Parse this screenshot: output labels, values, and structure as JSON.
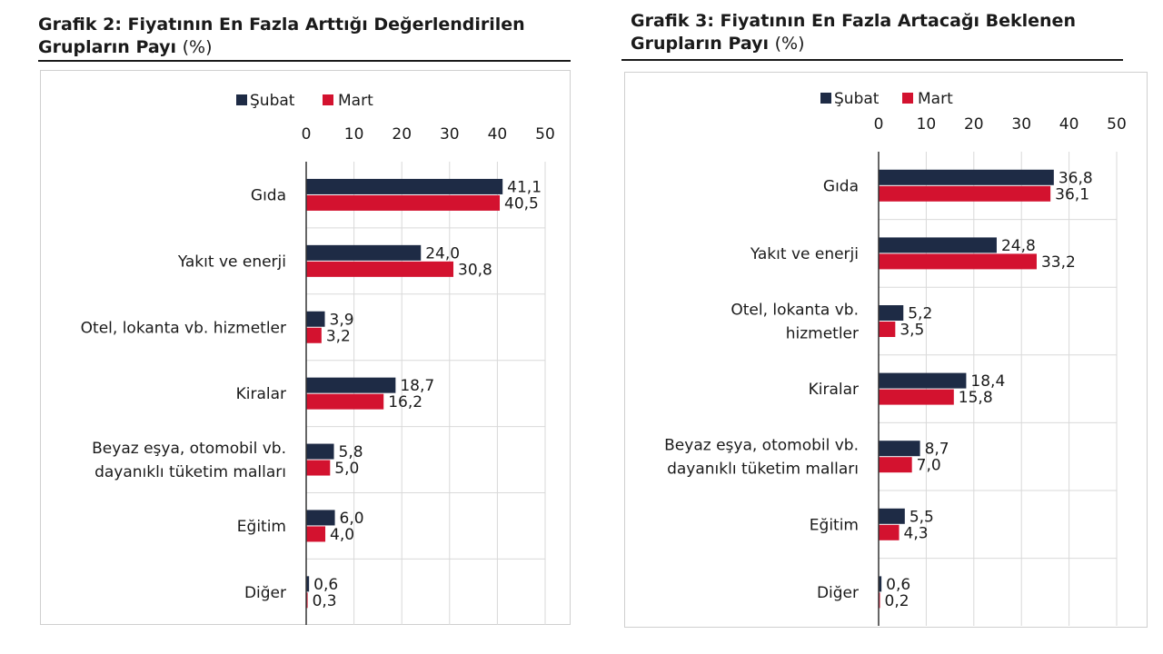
{
  "charts": [
    {
      "title_main": "Grafik 2: Fiyatının En Fazla Arttığı Değerlendirilen",
      "title_line2": "Grupların Payı",
      "title_unit": "(%)"
    },
    {
      "title_main": "Grafik 3: Fiyatının En Fazla Artacağı Beklenen",
      "title_line2": "Grupların Payı",
      "title_unit": "(%)"
    }
  ],
  "colors": {
    "subat": "#1e2b45",
    "mart": "#d3122f",
    "grid": "#d9d9d9",
    "axis": "#333333"
  },
  "chart_data": [
    {
      "type": "bar",
      "orientation": "horizontal",
      "title": "Grafik 2: Fiyatının En Fazla Arttığı Değerlendirilen Grupların Payı (%)",
      "categories": [
        [
          "Gıda"
        ],
        [
          "Yakıt ve enerji"
        ],
        [
          "Otel, lokanta vb. hizmetler"
        ],
        [
          "Kiralar"
        ],
        [
          "Beyaz eşya, otomobil vb.",
          "dayanıklı tüketim malları"
        ],
        [
          "Eğitim"
        ],
        [
          "Diğer"
        ]
      ],
      "series": [
        {
          "name": "Şubat",
          "values": [
            41.1,
            24.0,
            3.9,
            18.7,
            5.8,
            6.0,
            0.6
          ],
          "labels": [
            "41,1",
            "24,0",
            "3,9",
            "18,7",
            "5,8",
            "6,0",
            "0,6"
          ]
        },
        {
          "name": "Mart",
          "values": [
            40.5,
            30.8,
            3.2,
            16.2,
            5.0,
            4.0,
            0.3
          ],
          "labels": [
            "40,5",
            "30,8",
            "3,2",
            "16,2",
            "5,0",
            "4,0",
            "0,3"
          ]
        }
      ],
      "xlim": [
        0,
        50
      ],
      "xticks": [
        "0",
        "10",
        "20",
        "30",
        "40",
        "50"
      ],
      "legend_position": "top",
      "grid": true
    },
    {
      "type": "bar",
      "orientation": "horizontal",
      "title": "Grafik 3: Fiyatının En Fazla Artacağı Beklenen Grupların Payı (%)",
      "categories": [
        [
          "Gıda"
        ],
        [
          "Yakıt ve enerji"
        ],
        [
          "Otel, lokanta vb.",
          "hizmetler"
        ],
        [
          "Kiralar"
        ],
        [
          "Beyaz eşya, otomobil vb.",
          "dayanıklı tüketim malları"
        ],
        [
          "Eğitim"
        ],
        [
          "Diğer"
        ]
      ],
      "series": [
        {
          "name": "Şubat",
          "values": [
            36.8,
            24.8,
            5.2,
            18.4,
            8.7,
            5.5,
            0.6
          ],
          "labels": [
            "36,8",
            "24,8",
            "5,2",
            "18,4",
            "8,7",
            "5,5",
            "0,6"
          ]
        },
        {
          "name": "Mart",
          "values": [
            36.1,
            33.2,
            3.5,
            15.8,
            7.0,
            4.3,
            0.2
          ],
          "labels": [
            "36,1",
            "33,2",
            "3,5",
            "15,8",
            "7,0",
            "4,3",
            "0,2"
          ]
        }
      ],
      "xlim": [
        0,
        50
      ],
      "xticks": [
        "0",
        "10",
        "20",
        "30",
        "40",
        "50"
      ],
      "legend_position": "top",
      "grid": true
    }
  ]
}
